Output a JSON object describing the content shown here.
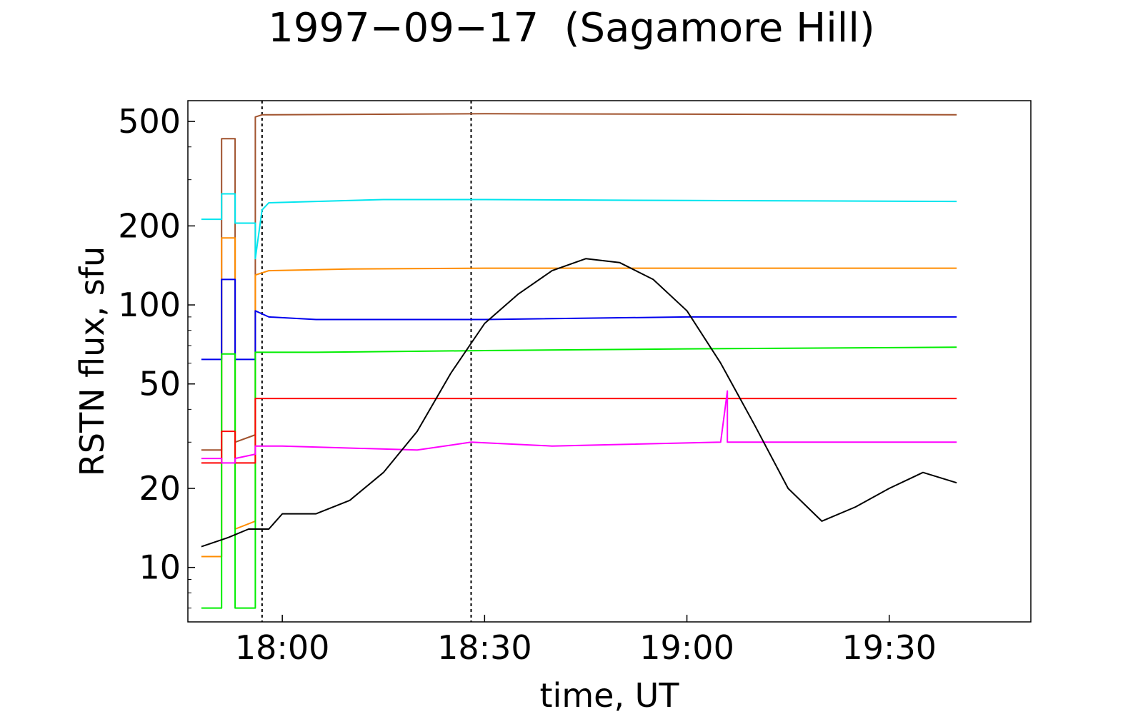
{
  "chart_data": {
    "type": "line",
    "title": "1997−09−17  (Sagamore Hill)",
    "xlabel": "time,  UT",
    "ylabel": "RSTN flux,  sfu",
    "y_scale": "log",
    "ylim": [
      6.2,
      600
    ],
    "xlim": [
      "17:46",
      "19:51"
    ],
    "x_ticks": [
      "18:00",
      "18:30",
      "19:00",
      "19:30"
    ],
    "y_ticks": [
      10,
      20,
      50,
      100,
      200,
      500
    ],
    "grid": false,
    "legend": "none",
    "vertical_markers": [
      "17:57",
      "18:28"
    ],
    "series": [
      {
        "color": "#a0522d",
        "points": [
          [
            "17:48",
            28
          ],
          [
            "17:51",
            28
          ],
          [
            "17:51",
            430
          ],
          [
            "17:53",
            430
          ],
          [
            "17:53",
            30
          ],
          [
            "17:56",
            32
          ],
          [
            "17:56",
            520
          ],
          [
            "17:57",
            530
          ],
          [
            "18:30",
            535
          ],
          [
            "19:00",
            533
          ],
          [
            "19:40",
            530
          ]
        ]
      },
      {
        "color": "#00e5ee",
        "points": [
          [
            "17:48",
            212
          ],
          [
            "17:51",
            212
          ],
          [
            "17:51",
            265
          ],
          [
            "17:53",
            265
          ],
          [
            "17:53",
            205
          ],
          [
            "17:56",
            205
          ],
          [
            "17:56",
            150
          ],
          [
            "17:57",
            230
          ],
          [
            "17:58",
            245
          ],
          [
            "18:05",
            248
          ],
          [
            "18:15",
            252
          ],
          [
            "18:30",
            252
          ],
          [
            "19:00",
            250
          ],
          [
            "19:40",
            248
          ]
        ]
      },
      {
        "color": "#ff8c00",
        "points": [
          [
            "17:48",
            11
          ],
          [
            "17:51",
            11
          ],
          [
            "17:51",
            180
          ],
          [
            "17:53",
            180
          ],
          [
            "17:53",
            14
          ],
          [
            "17:56",
            15
          ],
          [
            "17:56",
            130
          ],
          [
            "17:58",
            135
          ],
          [
            "18:10",
            137
          ],
          [
            "18:30",
            138
          ],
          [
            "19:00",
            138
          ],
          [
            "19:40",
            138
          ]
        ]
      },
      {
        "color": "#0000ee",
        "points": [
          [
            "17:48",
            62
          ],
          [
            "17:51",
            62
          ],
          [
            "17:51",
            125
          ],
          [
            "17:53",
            125
          ],
          [
            "17:53",
            62
          ],
          [
            "17:56",
            62
          ],
          [
            "17:56",
            95
          ],
          [
            "17:58",
            90
          ],
          [
            "18:05",
            88
          ],
          [
            "18:30",
            88
          ],
          [
            "19:00",
            90
          ],
          [
            "19:20",
            90
          ],
          [
            "19:40",
            90
          ]
        ]
      },
      {
        "color": "#00ee00",
        "points": [
          [
            "17:48",
            7
          ],
          [
            "17:51",
            7
          ],
          [
            "17:51",
            65
          ],
          [
            "17:53",
            65
          ],
          [
            "17:53",
            7
          ],
          [
            "17:56",
            7
          ],
          [
            "17:56",
            66
          ],
          [
            "18:05",
            66
          ],
          [
            "18:30",
            67
          ],
          [
            "19:00",
            68
          ],
          [
            "19:40",
            69
          ]
        ]
      },
      {
        "color": "#ff0000",
        "points": [
          [
            "17:48",
            25
          ],
          [
            "17:51",
            25
          ],
          [
            "17:51",
            33
          ],
          [
            "17:53",
            33
          ],
          [
            "17:53",
            25
          ],
          [
            "17:56",
            25
          ],
          [
            "17:56",
            44
          ],
          [
            "18:05",
            44
          ],
          [
            "18:30",
            44
          ],
          [
            "19:00",
            44
          ],
          [
            "19:40",
            44
          ]
        ]
      },
      {
        "color": "#ff00ff",
        "points": [
          [
            "17:48",
            26
          ],
          [
            "17:51",
            26
          ],
          [
            "17:51",
            25
          ],
          [
            "17:53",
            25
          ],
          [
            "17:53",
            26
          ],
          [
            "17:56",
            27
          ],
          [
            "17:56",
            29
          ],
          [
            "18:00",
            29
          ],
          [
            "18:20",
            28
          ],
          [
            "18:28",
            30
          ],
          [
            "18:40",
            29
          ],
          [
            "19:05",
            30
          ],
          [
            "19:06",
            47
          ],
          [
            "19:06",
            30
          ],
          [
            "19:40",
            30
          ]
        ]
      },
      {
        "color": "#000000",
        "points": [
          [
            "17:48",
            12
          ],
          [
            "17:52",
            13
          ],
          [
            "17:55",
            14
          ],
          [
            "17:56",
            14
          ],
          [
            "17:58",
            14
          ],
          [
            "18:00",
            16
          ],
          [
            "18:05",
            16
          ],
          [
            "18:10",
            18
          ],
          [
            "18:15",
            23
          ],
          [
            "18:20",
            33
          ],
          [
            "18:25",
            55
          ],
          [
            "18:30",
            85
          ],
          [
            "18:35",
            110
          ],
          [
            "18:40",
            135
          ],
          [
            "18:45",
            150
          ],
          [
            "18:50",
            145
          ],
          [
            "18:55",
            125
          ],
          [
            "19:00",
            95
          ],
          [
            "19:05",
            60
          ],
          [
            "19:10",
            35
          ],
          [
            "19:15",
            20
          ],
          [
            "19:20",
            15
          ],
          [
            "19:25",
            17
          ],
          [
            "19:30",
            20
          ],
          [
            "19:35",
            23
          ],
          [
            "19:40",
            21
          ]
        ]
      }
    ]
  }
}
